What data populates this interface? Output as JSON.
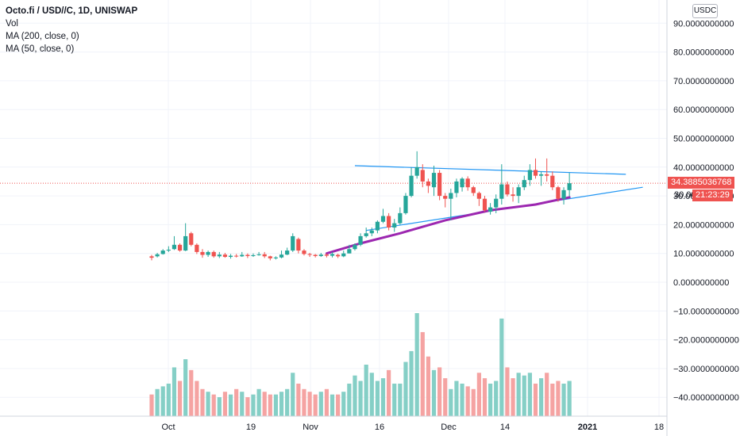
{
  "legend": {
    "title": "Octo.fi / USD//C, 1D, UNISWAP",
    "vol": "Vol",
    "ma200": "MA (200, close, 0)",
    "ma50": "MA (50, close, 0)"
  },
  "currency_button": "USDC",
  "last_price_label": "34.3885036768",
  "price_tag_prefix": "30.00",
  "countdown_label": "21:23:29",
  "colors": {
    "up": "#26a69a",
    "down": "#ef5350",
    "ma": "#9c27b0",
    "trendline": "#2196f3",
    "vol_up": "#85cfc6",
    "vol_down": "#f5a3a2",
    "grid": "#f0f3fa"
  },
  "chart_data": {
    "type": "candlestick",
    "yaxis_ticks": [
      "90.0000000000",
      "80.0000000000",
      "70.0000000000",
      "60.0000000000",
      "50.0000000000",
      "40.0000000000",
      "30.0000000000",
      "20.0000000000",
      "10.0000000000",
      "0.0000000000",
      "−10.0000000000",
      "−20.0000000000",
      "−30.0000000000",
      "−40.0000000000"
    ],
    "xaxis_ticks": [
      "Oct",
      "19",
      "Nov",
      "16",
      "Dec",
      "14",
      "2021",
      "18"
    ],
    "ylim": [
      -46,
      95
    ],
    "candles": [
      [
        9.0,
        8.5,
        9.5,
        7.6
      ],
      [
        9.0,
        9.7,
        10.2,
        8.6
      ],
      [
        9.8,
        11.0,
        11.5,
        9.6
      ],
      [
        11.0,
        11.3,
        12.5,
        10.5
      ],
      [
        11.5,
        13.0,
        16.0,
        11.2
      ],
      [
        13.0,
        11.0,
        13.5,
        10.6
      ],
      [
        11.0,
        16.0,
        20.5,
        10.8
      ],
      [
        17.0,
        13.0,
        17.5,
        12.5
      ],
      [
        13.0,
        10.5,
        13.5,
        9.8
      ],
      [
        10.5,
        9.5,
        11.5,
        8.5
      ],
      [
        9.5,
        10.5,
        11.0,
        8.8
      ],
      [
        10.5,
        9.0,
        11.0,
        8.5
      ],
      [
        9.0,
        9.6,
        10.5,
        8.4
      ],
      [
        9.6,
        8.8,
        10.2,
        8.5
      ],
      [
        8.8,
        9.2,
        9.8,
        8.2
      ],
      [
        9.2,
        9.0,
        9.8,
        8.6
      ],
      [
        9.0,
        9.5,
        10.5,
        8.8
      ],
      [
        9.5,
        9.1,
        10.0,
        8.4
      ],
      [
        9.1,
        9.4,
        10.0,
        8.8
      ],
      [
        9.4,
        9.7,
        10.5,
        9.2
      ],
      [
        9.7,
        9.0,
        10.5,
        8.4
      ],
      [
        9.0,
        8.3,
        9.2,
        7.6
      ],
      [
        8.3,
        8.6,
        9.0,
        7.9
      ],
      [
        8.6,
        9.6,
        11.0,
        8.3
      ],
      [
        9.6,
        11.0,
        12.0,
        9.4
      ],
      [
        11.0,
        16.0,
        17.0,
        10.5
      ],
      [
        15.0,
        11.0,
        15.5,
        10.0
      ],
      [
        11.0,
        9.8,
        11.5,
        9.3
      ],
      [
        9.8,
        9.5,
        10.2,
        8.8
      ],
      [
        9.5,
        9.1,
        9.8,
        8.6
      ],
      [
        9.1,
        9.6,
        10.2,
        8.8
      ],
      [
        9.6,
        9.2,
        10.0,
        8.6
      ],
      [
        9.2,
        9.8,
        10.5,
        8.6
      ],
      [
        9.5,
        9.0,
        9.9,
        8.4
      ],
      [
        9.0,
        10.0,
        11.0,
        8.7
      ],
      [
        10.0,
        11.5,
        13.0,
        10.0
      ],
      [
        11.5,
        13.0,
        13.5,
        11.0
      ],
      [
        13.0,
        16.0,
        17.0,
        12.5
      ],
      [
        16.0,
        17.0,
        19.0,
        15.5
      ],
      [
        17.0,
        18.0,
        19.0,
        16.0
      ],
      [
        18.0,
        21.0,
        21.5,
        17.0
      ],
      [
        21.0,
        23.0,
        25.5,
        20.5
      ],
      [
        23.0,
        19.0,
        24.0,
        18.0
      ],
      [
        19.0,
        20.5,
        22.0,
        17.5
      ],
      [
        20.5,
        24.0,
        26.0,
        20.0
      ],
      [
        24.0,
        30.0,
        31.0,
        23.5
      ],
      [
        30.0,
        37.0,
        40.0,
        29.5
      ],
      [
        37.0,
        40.0,
        45.5,
        36.0
      ],
      [
        39.0,
        35.0,
        41.0,
        33.0
      ],
      [
        35.0,
        33.5,
        36.0,
        31.0
      ],
      [
        33.0,
        38.0,
        40.5,
        30.0
      ],
      [
        38.0,
        30.0,
        39.0,
        28.5
      ],
      [
        30.0,
        29.0,
        31.0,
        26.0
      ],
      [
        29.0,
        31.0,
        32.5,
        21.5
      ],
      [
        31.0,
        35.0,
        36.0,
        29.5
      ],
      [
        33.0,
        36.0,
        36.5,
        31.5
      ],
      [
        36.0,
        33.0,
        36.8,
        31.8
      ],
      [
        33.0,
        31.0,
        33.5,
        30.0
      ],
      [
        31.0,
        29.0,
        31.5,
        26.5
      ],
      [
        29.0,
        25.0,
        30.0,
        24.5
      ],
      [
        24.5,
        26.0,
        27.5,
        23.5
      ],
      [
        26.0,
        29.0,
        30.5,
        24.0
      ],
      [
        29.0,
        34.0,
        41.0,
        27.0
      ],
      [
        34.0,
        30.5,
        35.0,
        29.8
      ],
      [
        30.5,
        30.0,
        33.0,
        28.0
      ],
      [
        30.0,
        33.0,
        34.0,
        27.5
      ],
      [
        33.0,
        35.5,
        37.0,
        32.0
      ],
      [
        35.5,
        39.0,
        41.0,
        33.5
      ],
      [
        39.0,
        37.0,
        43.0,
        36.0
      ],
      [
        37.0,
        37.5,
        38.5,
        33.5
      ],
      [
        37.5,
        37.0,
        43.0,
        35.0
      ],
      [
        37.0,
        33.0,
        38.5,
        32.0
      ],
      [
        33.0,
        29.0,
        33.5,
        28.0
      ],
      [
        29.0,
        32.0,
        33.0,
        27.0
      ],
      [
        32.0,
        34.3885,
        38.0,
        29.8
      ]
    ],
    "volume": [
      8,
      10,
      11,
      12,
      18,
      13,
      21,
      17,
      13,
      10,
      9,
      8,
      7,
      9,
      8,
      10,
      9,
      7,
      8,
      10,
      9,
      8,
      8,
      9,
      10,
      16,
      12,
      10,
      9,
      8,
      9,
      10,
      8,
      8,
      9,
      12,
      15,
      13,
      19,
      16,
      13,
      14,
      17,
      12,
      12,
      20,
      24,
      38,
      31,
      22,
      17,
      18,
      14,
      10,
      13,
      12,
      11,
      10,
      16,
      14,
      12,
      13,
      36,
      18,
      14,
      16,
      15,
      16,
      12,
      14,
      16,
      12,
      13,
      12,
      13
    ],
    "ma50": [
      [
        31,
        10.0
      ],
      [
        37,
        13.5
      ],
      [
        44,
        17.0
      ],
      [
        52,
        21.5
      ],
      [
        60,
        25.0
      ],
      [
        68,
        27.0
      ],
      [
        74,
        29.5
      ]
    ],
    "trendlines": [
      {
        "from": [
          36,
          40.5
        ],
        "to": [
          84,
          37.5
        ]
      },
      {
        "from": [
          38,
          18.0
        ],
        "to": [
          87,
          33.0
        ]
      }
    ],
    "last_price": 34.3885036768
  }
}
